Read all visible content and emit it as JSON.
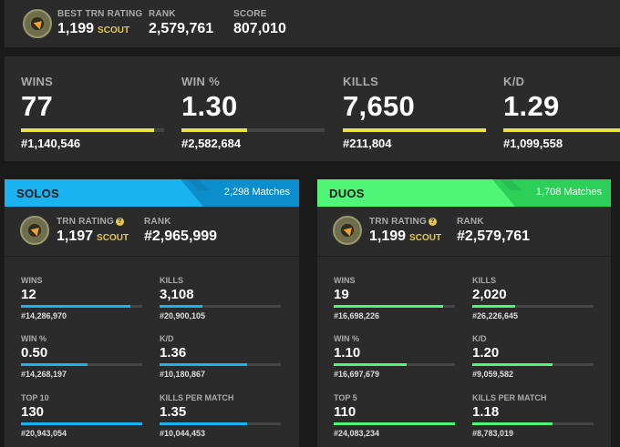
{
  "colors": {
    "yellow": "#e6e24a",
    "solos": "#18b3f0",
    "duos": "#4ef577",
    "panel": "#2b2b2b",
    "bg": "#1a1a1a"
  },
  "top": {
    "best_rating_label": "BEST TRN RATING",
    "best_rating_value": "1,199",
    "best_rating_tier": "SCOUT",
    "rank_label": "RANK",
    "rank_value": "2,579,761",
    "score_label": "SCORE",
    "score_value": "807,010"
  },
  "lifetime": [
    {
      "label": "WINS",
      "value": "77",
      "rank": "#1,140,546",
      "progress": 0.93
    },
    {
      "label": "WIN %",
      "value": "1.30",
      "rank": "#2,582,684",
      "progress": 0.46
    },
    {
      "label": "KILLS",
      "value": "7,650",
      "rank": "#211,804",
      "progress": 1.0
    },
    {
      "label": "K/D",
      "value": "1.29",
      "rank": "#1,099,558",
      "progress": 1.0
    }
  ],
  "solos": {
    "title": "SOLOS",
    "matches": "2,298 Matches",
    "rating_label": "TRN RATING",
    "rating_value": "1,197",
    "rating_tier": "SCOUT",
    "rank_label": "RANK",
    "rank_value": "#2,965,999",
    "stats": [
      {
        "label": "WINS",
        "value": "12",
        "rank": "#14,286,970",
        "progress": 0.9
      },
      {
        "label": "KILLS",
        "value": "3,108",
        "rank": "#20,900,105",
        "progress": 0.35
      },
      {
        "label": "WIN %",
        "value": "0.50",
        "rank": "#14,268,197",
        "progress": 0.55
      },
      {
        "label": "K/D",
        "value": "1.36",
        "rank": "#10,180,867",
        "progress": 0.72
      },
      {
        "label": "TOP 10",
        "value": "130",
        "rank": "#20,943,054",
        "progress": 1.0
      },
      {
        "label": "KILLS PER MATCH",
        "value": "1.35",
        "rank": "#10,044,453",
        "progress": 0.72
      }
    ]
  },
  "duos": {
    "title": "DUOS",
    "matches": "1,708 Matches",
    "rating_label": "TRN RATING",
    "rating_value": "1,199",
    "rating_tier": "SCOUT",
    "rank_label": "RANK",
    "rank_value": "#2,579,761",
    "stats": [
      {
        "label": "WINS",
        "value": "19",
        "rank": "#16,698,226",
        "progress": 0.9
      },
      {
        "label": "KILLS",
        "value": "2,020",
        "rank": "#26,226,645",
        "progress": 0.35
      },
      {
        "label": "WIN %",
        "value": "1.10",
        "rank": "#16,697,679",
        "progress": 0.6
      },
      {
        "label": "K/D",
        "value": "1.20",
        "rank": "#9,059,582",
        "progress": 0.66
      },
      {
        "label": "TOP 5",
        "value": "110",
        "rank": "#24,083,234",
        "progress": 1.0
      },
      {
        "label": "KILLS PER MATCH",
        "value": "1.18",
        "rank": "#8,783,019",
        "progress": 0.66
      }
    ]
  }
}
